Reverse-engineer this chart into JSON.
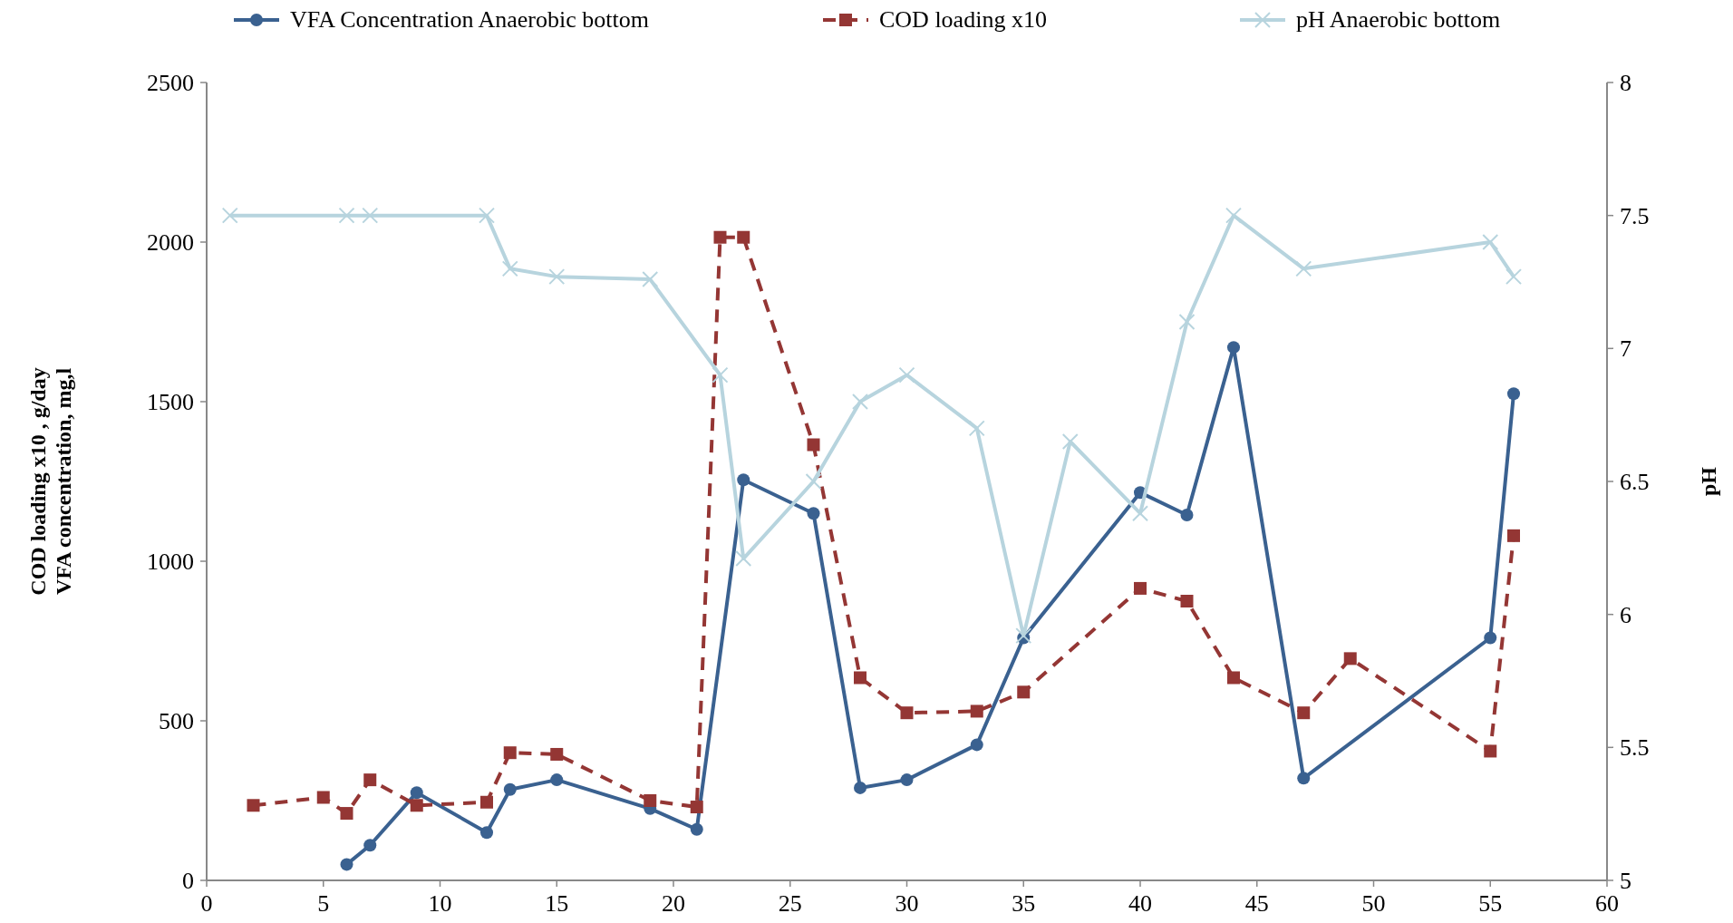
{
  "chart_data": {
    "type": "line",
    "ylabel": "COD loading x10 , g/day\nVFA concentration, mg,l",
    "y2label": "pH",
    "xlim": [
      0,
      60
    ],
    "xticks": [
      0,
      5,
      10,
      15,
      20,
      25,
      30,
      35,
      40,
      45,
      50,
      55,
      60
    ],
    "ylim": [
      0,
      2500
    ],
    "yticks": [
      0,
      500,
      1000,
      1500,
      2000,
      2500
    ],
    "y2lim": [
      5,
      8
    ],
    "y2ticks": [
      5,
      5.5,
      6,
      6.5,
      7,
      7.5,
      8
    ],
    "grid": false,
    "legend": "top",
    "series": [
      {
        "name": "VFA Concentration Anaerobic bottom",
        "color": "#3a6190",
        "marker": "circle",
        "line_style": "solid",
        "x": [
          6,
          7,
          9,
          12,
          13,
          15,
          19,
          21,
          23,
          26,
          28,
          30,
          33,
          35,
          40,
          42,
          44,
          47,
          55,
          56
        ],
        "values": [
          50,
          110,
          275,
          150,
          285,
          315,
          225,
          160,
          1255,
          1150,
          290,
          315,
          425,
          760,
          1215,
          1145,
          1670,
          320,
          760,
          1525
        ]
      },
      {
        "name": "COD loading x10",
        "color": "#943634",
        "marker": "square",
        "line_style": "dashed",
        "x": [
          2,
          5,
          6,
          7,
          9,
          12,
          13,
          15,
          19,
          21,
          22,
          23,
          26,
          28,
          30,
          33,
          35,
          40,
          42,
          44,
          47,
          49,
          55,
          56
        ],
        "values": [
          235,
          260,
          210,
          315,
          235,
          245,
          400,
          395,
          250,
          230,
          2015,
          2015,
          1365,
          635,
          525,
          530,
          590,
          915,
          875,
          635,
          525,
          695,
          405,
          1080
        ]
      },
      {
        "name": "pH Anaerobic bottom",
        "color": "#b7d4de",
        "marker": "cross",
        "line_style": "solid",
        "axis": "y2",
        "x": [
          1,
          6,
          7,
          12,
          13,
          15,
          19,
          22,
          23,
          26,
          28,
          30,
          33,
          35,
          37,
          40,
          42,
          44,
          47,
          55,
          56
        ],
        "values": [
          7.5,
          7.5,
          7.5,
          7.5,
          7.3,
          7.27,
          7.26,
          6.9,
          6.21,
          6.5,
          6.8,
          6.9,
          6.7,
          5.92,
          6.65,
          6.38,
          7.1,
          7.5,
          7.3,
          7.4,
          7.27
        ]
      }
    ]
  }
}
